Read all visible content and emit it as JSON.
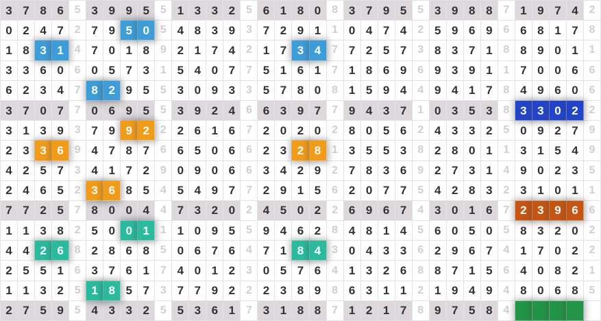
{
  "palette": {
    "lightblue": "#3c9dd8",
    "orange": "#f19b18",
    "teal": "#2abb9e",
    "darkblue": "#2144cb",
    "darkorange": "#c65512",
    "green": "#219447",
    "shaded_row": "#dcd8dc",
    "main_digit": "#323232",
    "gap_digit": "#d1ced3",
    "border": "#e4e1e4",
    "highlight_text": "#ffffff"
  },
  "grid": {
    "num_rows": 16,
    "num_cols": 35,
    "group_pattern": "4 main digits + 1 gap digit, 7 groups per row",
    "shaded_rows": [
      1,
      6,
      11,
      16
    ],
    "rows": [
      {
        "groups": [
          {
            "main": "3786",
            "gap": "5"
          },
          {
            "main": "3995",
            "gap": "5"
          },
          {
            "main": "1332",
            "gap": "5"
          },
          {
            "main": "6180",
            "gap": "8"
          },
          {
            "main": "3795",
            "gap": "5"
          },
          {
            "main": "3988",
            "gap": "7"
          },
          {
            "main": "1974",
            "gap": "2"
          }
        ]
      },
      {
        "groups": [
          {
            "main": "0247",
            "gap": "2"
          },
          {
            "main": "7950",
            "gap": "5",
            "hl": {
              "color": "lightblue",
              "cells": [
                2,
                3
              ]
            }
          },
          {
            "main": "4839",
            "gap": "3"
          },
          {
            "main": "7291",
            "gap": "1"
          },
          {
            "main": "0474",
            "gap": "2"
          },
          {
            "main": "5969",
            "gap": "6"
          },
          {
            "main": "6817",
            "gap": "8"
          }
        ]
      },
      {
        "groups": [
          {
            "main": "1831",
            "gap": "4",
            "hl": {
              "color": "lightblue",
              "cells": [
                2,
                3
              ]
            }
          },
          {
            "main": "7018",
            "gap": "9"
          },
          {
            "main": "2174",
            "gap": "2"
          },
          {
            "main": "1734",
            "gap": "7",
            "hl": {
              "color": "lightblue",
              "cells": [
                2,
                3
              ]
            }
          },
          {
            "main": "7257",
            "gap": "3"
          },
          {
            "main": "8371",
            "gap": "8"
          },
          {
            "main": "8901",
            "gap": "1"
          }
        ]
      },
      {
        "groups": [
          {
            "main": "3360",
            "gap": "6"
          },
          {
            "main": "0573",
            "gap": "1"
          },
          {
            "main": "5407",
            "gap": "7"
          },
          {
            "main": "5161",
            "gap": "7"
          },
          {
            "main": "1869",
            "gap": "6"
          },
          {
            "main": "9391",
            "gap": "1"
          },
          {
            "main": "7006",
            "gap": "6"
          }
        ]
      },
      {
        "groups": [
          {
            "main": "6234",
            "gap": "7"
          },
          {
            "main": "8295",
            "gap": "5",
            "hl": {
              "color": "lightblue",
              "cells": [
                0,
                1
              ]
            }
          },
          {
            "main": "3093",
            "gap": "3"
          },
          {
            "main": "5780",
            "gap": "8"
          },
          {
            "main": "1594",
            "gap": "4"
          },
          {
            "main": "9417",
            "gap": "8"
          },
          {
            "main": "4960",
            "gap": "6"
          }
        ]
      },
      {
        "groups": [
          {
            "main": "3707",
            "gap": "7"
          },
          {
            "main": "0695",
            "gap": "5"
          },
          {
            "main": "3924",
            "gap": "6"
          },
          {
            "main": "6397",
            "gap": "7"
          },
          {
            "main": "9437",
            "gap": "1"
          },
          {
            "main": "0353",
            "gap": "8"
          },
          {
            "main": "3302",
            "gap": "2",
            "hl": {
              "color": "darkblue",
              "cells": [
                0,
                1,
                2,
                3
              ]
            }
          }
        ]
      },
      {
        "groups": [
          {
            "main": "3139",
            "gap": "3"
          },
          {
            "main": "7992",
            "gap": "2",
            "hl": {
              "color": "orange",
              "cells": [
                2,
                3
              ]
            }
          },
          {
            "main": "2616",
            "gap": "7"
          },
          {
            "main": "2020",
            "gap": "2"
          },
          {
            "main": "8056",
            "gap": "2"
          },
          {
            "main": "4332",
            "gap": "5"
          },
          {
            "main": "0927",
            "gap": "9"
          }
        ]
      },
      {
        "groups": [
          {
            "main": "2336",
            "gap": "9",
            "hl": {
              "color": "orange",
              "cells": [
                2,
                3
              ]
            }
          },
          {
            "main": "4787",
            "gap": "6"
          },
          {
            "main": "6506",
            "gap": "6"
          },
          {
            "main": "2328",
            "gap": "1",
            "hl": {
              "color": "orange",
              "cells": [
                2,
                3
              ]
            }
          },
          {
            "main": "3553",
            "gap": "8"
          },
          {
            "main": "2801",
            "gap": "1"
          },
          {
            "main": "3154",
            "gap": "9"
          }
        ]
      },
      {
        "groups": [
          {
            "main": "4257",
            "gap": "3"
          },
          {
            "main": "4172",
            "gap": "9"
          },
          {
            "main": "0906",
            "gap": "6"
          },
          {
            "main": "3429",
            "gap": "2"
          },
          {
            "main": "7836",
            "gap": "9"
          },
          {
            "main": "2731",
            "gap": "4"
          },
          {
            "main": "9023",
            "gap": "5"
          }
        ]
      },
      {
        "groups": [
          {
            "main": "2465",
            "gap": "2"
          },
          {
            "main": "3685",
            "gap": "4",
            "hl": {
              "color": "orange",
              "cells": [
                0,
                1
              ]
            }
          },
          {
            "main": "5497",
            "gap": "7"
          },
          {
            "main": "2915",
            "gap": "6"
          },
          {
            "main": "2077",
            "gap": "5"
          },
          {
            "main": "4283",
            "gap": "2"
          },
          {
            "main": "3101",
            "gap": "1"
          }
        ]
      },
      {
        "groups": [
          {
            "main": "7725",
            "gap": "7"
          },
          {
            "main": "8004",
            "gap": "4"
          },
          {
            "main": "7320",
            "gap": "2"
          },
          {
            "main": "4502",
            "gap": "2"
          },
          {
            "main": "6967",
            "gap": "4"
          },
          {
            "main": "3016",
            "gap": "7"
          },
          {
            "main": "2396",
            "gap": "6",
            "hl": {
              "color": "darkorange",
              "cells": [
                0,
                1,
                2,
                3
              ]
            }
          }
        ]
      },
      {
        "groups": [
          {
            "main": "1138",
            "gap": "2"
          },
          {
            "main": "5001",
            "gap": "1",
            "hl": {
              "color": "teal",
              "cells": [
                2,
                3
              ]
            }
          },
          {
            "main": "1095",
            "gap": "5"
          },
          {
            "main": "9462",
            "gap": "8"
          },
          {
            "main": "4814",
            "gap": "5"
          },
          {
            "main": "6050",
            "gap": "5"
          },
          {
            "main": "8320",
            "gap": "2"
          }
        ]
      },
      {
        "groups": [
          {
            "main": "4426",
            "gap": "8",
            "hl": {
              "color": "teal",
              "cells": [
                2,
                3
              ]
            }
          },
          {
            "main": "2868",
            "gap": "5"
          },
          {
            "main": "0676",
            "gap": "4"
          },
          {
            "main": "7184",
            "gap": "3",
            "hl": {
              "color": "teal",
              "cells": [
                2,
                3
              ]
            }
          },
          {
            "main": "0433",
            "gap": "6"
          },
          {
            "main": "2967",
            "gap": "4"
          },
          {
            "main": "1702",
            "gap": "2"
          }
        ]
      },
      {
        "groups": [
          {
            "main": "2551",
            "gap": "6"
          },
          {
            "main": "3761",
            "gap": "7"
          },
          {
            "main": "4012",
            "gap": "3"
          },
          {
            "main": "0576",
            "gap": "4"
          },
          {
            "main": "1326",
            "gap": "8"
          },
          {
            "main": "8715",
            "gap": "6"
          },
          {
            "main": "4082",
            "gap": "1"
          }
        ]
      },
      {
        "groups": [
          {
            "main": "1132",
            "gap": "5"
          },
          {
            "main": "1857",
            "gap": "3",
            "hl": {
              "color": "teal",
              "cells": [
                0,
                1
              ]
            }
          },
          {
            "main": "7792",
            "gap": "2"
          },
          {
            "main": "2389",
            "gap": "8"
          },
          {
            "main": "6311",
            "gap": "2"
          },
          {
            "main": "1949",
            "gap": "4"
          },
          {
            "main": "8068",
            "gap": "5"
          }
        ]
      },
      {
        "groups": [
          {
            "main": "2759",
            "gap": "5"
          },
          {
            "main": "4332",
            "gap": "5"
          },
          {
            "main": "5361",
            "gap": "7"
          },
          {
            "main": "3188",
            "gap": "7"
          },
          {
            "main": "1217",
            "gap": "8"
          },
          {
            "main": "9758",
            "gap": "4"
          },
          {
            "main": "",
            "gap": "",
            "hl": {
              "color": "green",
              "cells": [
                0,
                1,
                2,
                3
              ]
            }
          }
        ]
      }
    ]
  }
}
